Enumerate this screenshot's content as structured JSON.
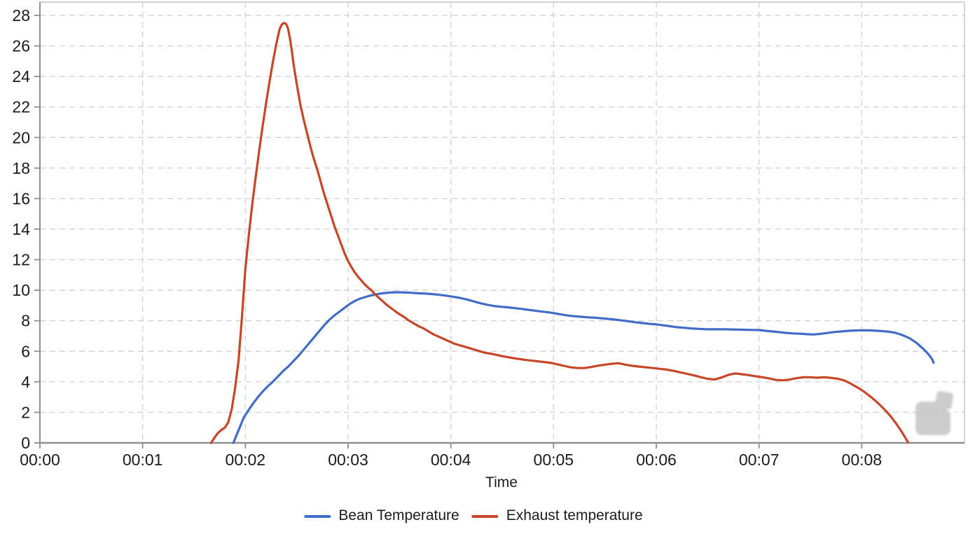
{
  "page": {
    "background": "#ffffff"
  },
  "styles": {
    "grid_color": "#d4d4d4",
    "axis_color": "#8f8f8f",
    "border_color": "#c3c3c3",
    "text_color": "#1b1b1b",
    "watermark_color": "#c8c8c8"
  },
  "icons": {
    "watermark": "roasting-app-logo-watermark"
  },
  "chart_data": {
    "type": "line",
    "title": "",
    "xlabel": "Time",
    "ylabel": "",
    "x_unit": "mm:ss",
    "xlim_seconds": [
      0,
      540
    ],
    "ylim": [
      0,
      28.87
    ],
    "grid": "dashed",
    "legend_position": "bottom",
    "x_ticks": [
      {
        "sec": 0,
        "label": "00:00"
      },
      {
        "sec": 60,
        "label": "00:01"
      },
      {
        "sec": 120,
        "label": "00:02"
      },
      {
        "sec": 180,
        "label": "00:03"
      },
      {
        "sec": 240,
        "label": "00:04"
      },
      {
        "sec": 300,
        "label": "00:05"
      },
      {
        "sec": 360,
        "label": "00:06"
      },
      {
        "sec": 420,
        "label": "00:07"
      },
      {
        "sec": 480,
        "label": "00:08"
      }
    ],
    "y_ticks": [
      0,
      2,
      4,
      6,
      8,
      10,
      12,
      14,
      16,
      18,
      20,
      22,
      24,
      26,
      28
    ],
    "series": [
      {
        "name": "Bean Temperature",
        "color": "#416cc7",
        "points": [
          [
            113,
            0
          ],
          [
            115,
            0.55
          ],
          [
            117,
            1.1
          ],
          [
            119,
            1.65
          ],
          [
            121,
            2.0
          ],
          [
            124,
            2.5
          ],
          [
            127,
            2.95
          ],
          [
            130,
            3.35
          ],
          [
            133,
            3.7
          ],
          [
            136,
            4.0
          ],
          [
            139,
            4.35
          ],
          [
            142,
            4.7
          ],
          [
            145,
            5.0
          ],
          [
            148,
            5.35
          ],
          [
            151,
            5.7
          ],
          [
            154,
            6.1
          ],
          [
            157,
            6.5
          ],
          [
            160,
            6.9
          ],
          [
            163,
            7.3
          ],
          [
            166,
            7.7
          ],
          [
            169,
            8.05
          ],
          [
            172,
            8.35
          ],
          [
            175,
            8.6
          ],
          [
            178,
            8.85
          ],
          [
            181,
            9.1
          ],
          [
            184,
            9.3
          ],
          [
            187,
            9.45
          ],
          [
            190,
            9.55
          ],
          [
            193,
            9.65
          ],
          [
            196,
            9.72
          ],
          [
            199,
            9.78
          ],
          [
            202,
            9.82
          ],
          [
            205,
            9.85
          ],
          [
            209,
            9.87
          ],
          [
            213,
            9.85
          ],
          [
            217,
            9.83
          ],
          [
            221,
            9.8
          ],
          [
            225,
            9.78
          ],
          [
            229,
            9.75
          ],
          [
            233,
            9.7
          ],
          [
            237,
            9.65
          ],
          [
            241,
            9.58
          ],
          [
            245,
            9.5
          ],
          [
            249,
            9.4
          ],
          [
            253,
            9.28
          ],
          [
            257,
            9.15
          ],
          [
            261,
            9.05
          ],
          [
            265,
            8.97
          ],
          [
            269,
            8.92
          ],
          [
            273,
            8.88
          ],
          [
            277,
            8.83
          ],
          [
            281,
            8.78
          ],
          [
            285,
            8.72
          ],
          [
            289,
            8.66
          ],
          [
            293,
            8.6
          ],
          [
            297,
            8.55
          ],
          [
            300,
            8.5
          ],
          [
            304,
            8.42
          ],
          [
            308,
            8.35
          ],
          [
            312,
            8.3
          ],
          [
            316,
            8.26
          ],
          [
            320,
            8.22
          ],
          [
            324,
            8.2
          ],
          [
            328,
            8.16
          ],
          [
            332,
            8.12
          ],
          [
            336,
            8.08
          ],
          [
            340,
            8.02
          ],
          [
            344,
            7.96
          ],
          [
            348,
            7.9
          ],
          [
            352,
            7.85
          ],
          [
            356,
            7.8
          ],
          [
            360,
            7.76
          ],
          [
            364,
            7.7
          ],
          [
            368,
            7.64
          ],
          [
            372,
            7.58
          ],
          [
            376,
            7.54
          ],
          [
            380,
            7.5
          ],
          [
            384,
            7.47
          ],
          [
            388,
            7.45
          ],
          [
            392,
            7.44
          ],
          [
            396,
            7.44
          ],
          [
            400,
            7.44
          ],
          [
            404,
            7.43
          ],
          [
            408,
            7.42
          ],
          [
            412,
            7.41
          ],
          [
            416,
            7.4
          ],
          [
            420,
            7.39
          ],
          [
            424,
            7.34
          ],
          [
            428,
            7.3
          ],
          [
            432,
            7.25
          ],
          [
            436,
            7.2
          ],
          [
            440,
            7.17
          ],
          [
            444,
            7.15
          ],
          [
            448,
            7.12
          ],
          [
            452,
            7.1
          ],
          [
            456,
            7.14
          ],
          [
            460,
            7.2
          ],
          [
            464,
            7.26
          ],
          [
            468,
            7.3
          ],
          [
            472,
            7.34
          ],
          [
            476,
            7.36
          ],
          [
            480,
            7.37
          ],
          [
            484,
            7.37
          ],
          [
            488,
            7.35
          ],
          [
            492,
            7.32
          ],
          [
            496,
            7.28
          ],
          [
            500,
            7.2
          ],
          [
            504,
            7.05
          ],
          [
            508,
            6.85
          ],
          [
            512,
            6.55
          ],
          [
            516,
            6.15
          ],
          [
            519,
            5.8
          ],
          [
            521,
            5.5
          ],
          [
            522,
            5.25
          ]
        ]
      },
      {
        "name": "Exhaust temperature",
        "color": "#c84628",
        "points": [
          [
            100,
            0
          ],
          [
            102,
            0.35
          ],
          [
            104,
            0.65
          ],
          [
            106,
            0.85
          ],
          [
            108,
            1.0
          ],
          [
            110,
            1.35
          ],
          [
            112,
            2.2
          ],
          [
            114,
            3.6
          ],
          [
            116,
            5.4
          ],
          [
            118,
            8.2
          ],
          [
            120,
            11.4
          ],
          [
            122,
            13.6
          ],
          [
            124,
            15.6
          ],
          [
            126,
            17.4
          ],
          [
            128,
            19.1
          ],
          [
            130,
            20.7
          ],
          [
            132,
            22.2
          ],
          [
            134,
            23.6
          ],
          [
            136,
            24.9
          ],
          [
            138,
            26.1
          ],
          [
            140,
            27.1
          ],
          [
            141,
            27.35
          ],
          [
            142,
            27.48
          ],
          [
            143,
            27.5
          ],
          [
            144,
            27.4
          ],
          [
            145,
            27.1
          ],
          [
            146,
            26.5
          ],
          [
            147,
            25.8
          ],
          [
            148,
            24.9
          ],
          [
            149,
            24.2
          ],
          [
            150,
            23.5
          ],
          [
            152,
            22.2
          ],
          [
            154,
            21.2
          ],
          [
            156,
            20.3
          ],
          [
            158,
            19.4
          ],
          [
            160,
            18.6
          ],
          [
            162,
            17.9
          ],
          [
            164,
            17.1
          ],
          [
            166,
            16.3
          ],
          [
            168,
            15.6
          ],
          [
            170,
            14.9
          ],
          [
            172,
            14.2
          ],
          [
            174,
            13.6
          ],
          [
            176,
            13.0
          ],
          [
            178,
            12.4
          ],
          [
            180,
            11.9
          ],
          [
            182,
            11.5
          ],
          [
            184,
            11.15
          ],
          [
            186,
            10.85
          ],
          [
            188,
            10.6
          ],
          [
            190,
            10.35
          ],
          [
            192,
            10.15
          ],
          [
            194,
            9.95
          ],
          [
            196,
            9.7
          ],
          [
            198,
            9.5
          ],
          [
            200,
            9.3
          ],
          [
            203,
            9.0
          ],
          [
            206,
            8.75
          ],
          [
            209,
            8.5
          ],
          [
            212,
            8.3
          ],
          [
            215,
            8.05
          ],
          [
            218,
            7.85
          ],
          [
            221,
            7.65
          ],
          [
            224,
            7.5
          ],
          [
            227,
            7.3
          ],
          [
            230,
            7.1
          ],
          [
            233,
            6.95
          ],
          [
            236,
            6.8
          ],
          [
            239,
            6.65
          ],
          [
            242,
            6.5
          ],
          [
            245,
            6.4
          ],
          [
            248,
            6.3
          ],
          [
            251,
            6.2
          ],
          [
            254,
            6.1
          ],
          [
            257,
            6.0
          ],
          [
            260,
            5.9
          ],
          [
            263,
            5.85
          ],
          [
            266,
            5.78
          ],
          [
            270,
            5.68
          ],
          [
            274,
            5.6
          ],
          [
            278,
            5.52
          ],
          [
            282,
            5.46
          ],
          [
            286,
            5.4
          ],
          [
            290,
            5.35
          ],
          [
            294,
            5.3
          ],
          [
            298,
            5.25
          ],
          [
            302,
            5.15
          ],
          [
            306,
            5.05
          ],
          [
            310,
            4.95
          ],
          [
            314,
            4.9
          ],
          [
            318,
            4.9
          ],
          [
            322,
            4.97
          ],
          [
            326,
            5.06
          ],
          [
            330,
            5.12
          ],
          [
            334,
            5.18
          ],
          [
            338,
            5.22
          ],
          [
            342,
            5.12
          ],
          [
            346,
            5.05
          ],
          [
            350,
            5.0
          ],
          [
            354,
            4.95
          ],
          [
            358,
            4.9
          ],
          [
            362,
            4.85
          ],
          [
            366,
            4.8
          ],
          [
            370,
            4.72
          ],
          [
            374,
            4.62
          ],
          [
            378,
            4.52
          ],
          [
            382,
            4.42
          ],
          [
            386,
            4.3
          ],
          [
            390,
            4.2
          ],
          [
            394,
            4.15
          ],
          [
            398,
            4.28
          ],
          [
            402,
            4.45
          ],
          [
            406,
            4.55
          ],
          [
            410,
            4.5
          ],
          [
            414,
            4.44
          ],
          [
            418,
            4.36
          ],
          [
            422,
            4.3
          ],
          [
            426,
            4.22
          ],
          [
            430,
            4.12
          ],
          [
            434,
            4.1
          ],
          [
            438,
            4.15
          ],
          [
            442,
            4.24
          ],
          [
            446,
            4.3
          ],
          [
            450,
            4.3
          ],
          [
            454,
            4.27
          ],
          [
            458,
            4.3
          ],
          [
            462,
            4.26
          ],
          [
            466,
            4.2
          ],
          [
            470,
            4.08
          ],
          [
            474,
            3.85
          ],
          [
            478,
            3.6
          ],
          [
            482,
            3.3
          ],
          [
            486,
            2.95
          ],
          [
            490,
            2.55
          ],
          [
            494,
            2.1
          ],
          [
            497,
            1.72
          ],
          [
            500,
            1.28
          ],
          [
            503,
            0.78
          ],
          [
            505,
            0.42
          ],
          [
            507,
            0.05
          ]
        ]
      }
    ]
  }
}
